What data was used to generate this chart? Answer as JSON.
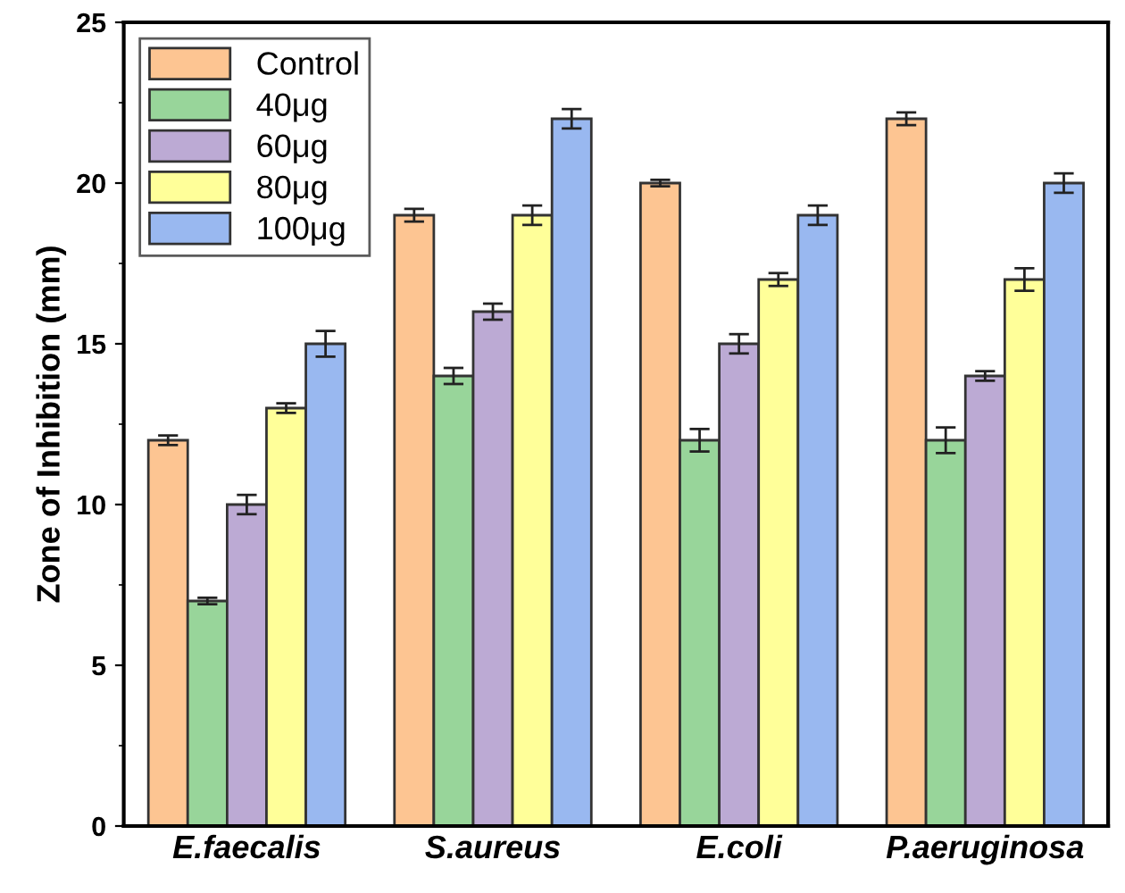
{
  "chart_data": {
    "type": "bar",
    "ylabel": "Zone of Inhibition (mm)",
    "categories": [
      "E.faecalis",
      "S.aureus",
      "E.coli",
      "P.aeruginosa"
    ],
    "series": [
      {
        "name": "Control",
        "color": "#fdc592",
        "values": [
          12,
          19,
          20,
          22
        ],
        "errors": [
          0.15,
          0.2,
          0.1,
          0.2
        ]
      },
      {
        "name": "40μg",
        "color": "#98d59a",
        "values": [
          7,
          14,
          12,
          12
        ],
        "errors": [
          0.1,
          0.25,
          0.35,
          0.4
        ]
      },
      {
        "name": "60μg",
        "color": "#bcaad4",
        "values": [
          10,
          16,
          15,
          14
        ],
        "errors": [
          0.3,
          0.25,
          0.3,
          0.15
        ]
      },
      {
        "name": "80μg",
        "color": "#ffff99",
        "values": [
          13,
          19,
          17,
          17
        ],
        "errors": [
          0.15,
          0.3,
          0.2,
          0.35
        ]
      },
      {
        "name": "100μg",
        "color": "#99b8f0",
        "values": [
          15,
          22,
          19,
          20
        ],
        "errors": [
          0.4,
          0.3,
          0.3,
          0.3
        ]
      }
    ],
    "ylim": [
      0,
      25
    ],
    "yticks": [
      0,
      5,
      10,
      15,
      20,
      25
    ],
    "grid": false,
    "legend": "top left"
  }
}
